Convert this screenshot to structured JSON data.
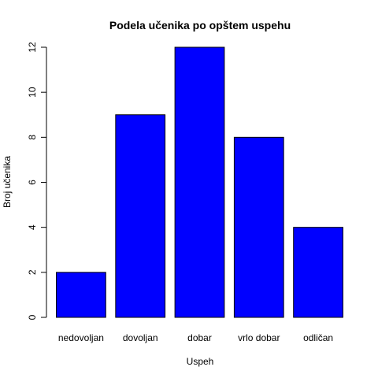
{
  "chart_data": {
    "type": "bar",
    "title": "Podela učenika po opštem uspehu",
    "xlabel": "Uspeh",
    "ylabel": "Broj učenika",
    "categories": [
      "nedovoljan",
      "dovoljan",
      "dobar",
      "vrlo dobar",
      "odličan"
    ],
    "values": [
      2,
      9,
      12,
      8,
      4
    ],
    "ylim": [
      0,
      12
    ],
    "yticks": [
      0,
      2,
      4,
      6,
      8,
      10,
      12
    ],
    "bar_color": "#0000ff",
    "grid": false,
    "legend": "none"
  }
}
